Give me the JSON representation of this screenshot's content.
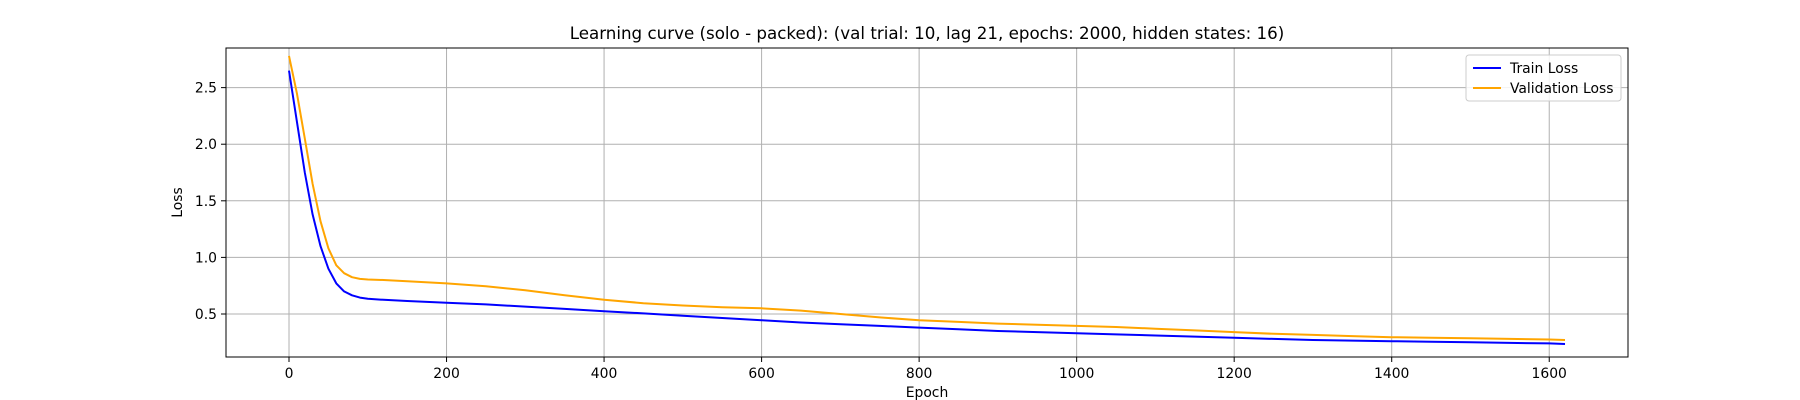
{
  "chart_data": {
    "type": "line",
    "title": "Learning curve (solo - packed): (val trial: 10, lag 21, epochs: 2000, hidden states: 16)",
    "xlabel": "Epoch",
    "ylabel": "Loss",
    "xlim": [
      -80,
      1700
    ],
    "ylim": [
      0.12,
      2.85
    ],
    "xticks": [
      0,
      200,
      400,
      600,
      800,
      1000,
      1200,
      1400,
      1600
    ],
    "yticks": [
      0.5,
      1.0,
      1.5,
      2.0,
      2.5
    ],
    "grid": true,
    "legend_position": "top-right",
    "series": [
      {
        "name": "Train Loss",
        "color": "#0000ff",
        "x": [
          0,
          10,
          20,
          30,
          40,
          50,
          60,
          70,
          80,
          90,
          100,
          120,
          150,
          200,
          250,
          300,
          350,
          400,
          450,
          500,
          550,
          600,
          650,
          700,
          750,
          800,
          850,
          900,
          950,
          1000,
          1050,
          1100,
          1150,
          1200,
          1250,
          1300,
          1350,
          1400,
          1450,
          1500,
          1550,
          1600,
          1620
        ],
        "y": [
          2.65,
          2.2,
          1.75,
          1.38,
          1.1,
          0.9,
          0.77,
          0.7,
          0.665,
          0.645,
          0.635,
          0.625,
          0.615,
          0.6,
          0.585,
          0.565,
          0.545,
          0.525,
          0.505,
          0.485,
          0.465,
          0.445,
          0.425,
          0.41,
          0.395,
          0.38,
          0.365,
          0.35,
          0.34,
          0.33,
          0.32,
          0.31,
          0.3,
          0.29,
          0.28,
          0.27,
          0.265,
          0.26,
          0.255,
          0.25,
          0.245,
          0.24,
          0.235
        ]
      },
      {
        "name": "Validation Loss",
        "color": "#ffa500",
        "x": [
          0,
          10,
          20,
          30,
          40,
          50,
          60,
          70,
          80,
          90,
          100,
          120,
          150,
          200,
          250,
          300,
          350,
          400,
          450,
          500,
          550,
          600,
          650,
          700,
          750,
          800,
          850,
          900,
          950,
          1000,
          1050,
          1100,
          1150,
          1200,
          1250,
          1300,
          1350,
          1400,
          1450,
          1500,
          1550,
          1600,
          1620
        ],
        "y": [
          2.78,
          2.45,
          2.05,
          1.65,
          1.32,
          1.08,
          0.93,
          0.86,
          0.825,
          0.81,
          0.805,
          0.8,
          0.79,
          0.77,
          0.745,
          0.71,
          0.665,
          0.625,
          0.595,
          0.575,
          0.56,
          0.55,
          0.53,
          0.5,
          0.47,
          0.445,
          0.43,
          0.415,
          0.405,
          0.395,
          0.385,
          0.37,
          0.355,
          0.34,
          0.325,
          0.315,
          0.305,
          0.295,
          0.29,
          0.285,
          0.28,
          0.275,
          0.27
        ]
      }
    ]
  }
}
